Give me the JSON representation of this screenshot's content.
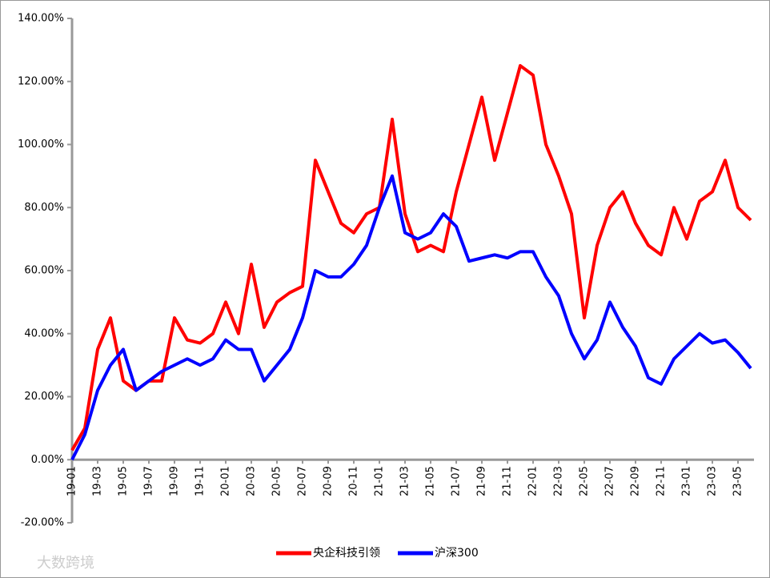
{
  "chart_data": {
    "type": "line",
    "categories": [
      "19-01",
      null,
      "19-03",
      null,
      "19-05",
      null,
      "19-07",
      null,
      "19-09",
      null,
      "19-11",
      null,
      "20-01",
      null,
      "20-03",
      null,
      "20-05",
      null,
      "20-07",
      null,
      "20-09",
      null,
      "20-11",
      null,
      "21-01",
      null,
      "21-03",
      null,
      "21-05",
      null,
      "21-07",
      null,
      "21-09",
      null,
      "21-11",
      null,
      "22-01",
      null,
      "22-03",
      null,
      "22-05",
      null,
      "22-07",
      null,
      "22-09",
      null,
      "22-11",
      null,
      "23-01",
      null,
      "23-03",
      null,
      "23-05",
      null
    ],
    "series": [
      {
        "name": "央企科技引领",
        "color": "#ff0000",
        "values": [
          3,
          10,
          35,
          45,
          25,
          22,
          25,
          25,
          45,
          38,
          37,
          40,
          50,
          40,
          62,
          42,
          50,
          53,
          55,
          95,
          85,
          75,
          72,
          78,
          80,
          108,
          78,
          66,
          68,
          66,
          85,
          100,
          115,
          95,
          110,
          125,
          122,
          100,
          90,
          78,
          45,
          68,
          80,
          85,
          75,
          68,
          65,
          80,
          70,
          82,
          85,
          95,
          80,
          76
        ]
      },
      {
        "name": "沪深300",
        "color": "#0000ff",
        "values": [
          0,
          8,
          22,
          30,
          35,
          22,
          25,
          28,
          30,
          32,
          30,
          32,
          38,
          35,
          35,
          25,
          30,
          35,
          45,
          60,
          58,
          58,
          62,
          68,
          80,
          90,
          72,
          70,
          72,
          78,
          74,
          63,
          64,
          65,
          64,
          66,
          66,
          58,
          52,
          40,
          32,
          38,
          50,
          42,
          36,
          26,
          24,
          32,
          36,
          40,
          37,
          38,
          34,
          29
        ]
      }
    ],
    "ylim": [
      -20,
      140
    ],
    "yticks": [
      {
        "value": -20,
        "label": "-20.00%"
      },
      {
        "value": 0,
        "label": "0.00%"
      },
      {
        "value": 20,
        "label": "20.00%"
      },
      {
        "value": 40,
        "label": "40.00%"
      },
      {
        "value": 60,
        "label": "60.00%"
      },
      {
        "value": 80,
        "label": "80.00%"
      },
      {
        "value": 100,
        "label": "100.00%"
      },
      {
        "value": 120,
        "label": "120.00%"
      },
      {
        "value": 140,
        "label": "140.00%"
      }
    ],
    "legend": "bottom",
    "watermark": "大数跨境"
  }
}
